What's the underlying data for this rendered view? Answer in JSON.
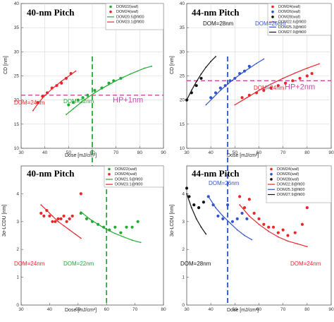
{
  "chart_data": [
    {
      "type": "scatter",
      "title": "40-nm Pitch",
      "xlabel": "Dose [mJ/cm²]",
      "ylabel": "CD [nm]",
      "xlim": [
        30,
        90
      ],
      "ylim": [
        10,
        40
      ],
      "xticks": [
        "30",
        "40",
        "50",
        "60",
        "70",
        "80",
        "90"
      ],
      "yticks": [
        "10",
        "15",
        "20",
        "25",
        "30",
        "35",
        "40"
      ],
      "grid": true,
      "legend_position": "top-right",
      "legend": [
        "DOM22(waf)",
        "DOM24(waf)",
        "DOM20.5@fit00",
        "DOM23.1@fit00"
      ],
      "series": [
        {
          "name": "DOM22(waf)",
          "kind": "points",
          "color": "#22aa33",
          "x": [
            50,
            52,
            54,
            56,
            58,
            61,
            64,
            67,
            69,
            72
          ],
          "y": [
            19,
            19.5,
            20,
            20.5,
            21,
            22,
            22.5,
            23.5,
            24,
            24.5
          ]
        },
        {
          "name": "DOM24(waf)",
          "kind": "points",
          "color": "#e8262b",
          "x": [
            37,
            39,
            41,
            43,
            45,
            47,
            49,
            51
          ],
          "y": [
            19.5,
            20.8,
            21.5,
            22.5,
            23,
            23.5,
            24.5,
            25.5
          ]
        },
        {
          "name": "DOM20.5@fit00",
          "kind": "line",
          "color": "#22aa33",
          "x": [
            49,
            52,
            55,
            58,
            61,
            64,
            67,
            70,
            73,
            76,
            79,
            82,
            85
          ],
          "y": [
            17,
            18.2,
            19.4,
            20.5,
            21.5,
            22.4,
            23.2,
            24,
            24.7,
            25.4,
            26,
            26.6,
            27
          ]
        },
        {
          "name": "DOM23.1@fit00",
          "kind": "line",
          "color": "#e8262b",
          "x": [
            35,
            37,
            39,
            41,
            43,
            45,
            47,
            49,
            51,
            53
          ],
          "y": [
            17.8,
            19.2,
            20.4,
            21.4,
            22.3,
            23.1,
            23.9,
            24.6,
            25.3,
            26
          ]
        }
      ],
      "hline": {
        "y": 21,
        "color": "#cc44aa",
        "label": "HP+1nm"
      },
      "vline": {
        "x": 60,
        "color": "#22aa33"
      },
      "annotations": [
        {
          "text": "DOM=24nm",
          "color": "#e8262b"
        },
        {
          "text": "DOM=22nm",
          "color": "#22aa33"
        }
      ]
    },
    {
      "type": "scatter",
      "title": "44-nm Pitch",
      "xlabel": "Dose [mJ/cm²]",
      "ylabel": "CD [nm]",
      "xlim": [
        30,
        90
      ],
      "ylim": [
        10,
        40
      ],
      "xticks": [
        "30",
        "40",
        "50",
        "60",
        "70",
        "80",
        "90"
      ],
      "yticks": [
        "10",
        "15",
        "20",
        "25",
        "30",
        "35",
        "40"
      ],
      "grid": true,
      "legend_position": "top-right",
      "legend": [
        "DOM24(waf)",
        "DOM26(waf)",
        "DOM28(waf)",
        "DOM22.6@fit00",
        "DOM25.3@fit00",
        "DOM27.9@fit00"
      ],
      "series": [
        {
          "name": "DOM24(waf)",
          "kind": "points",
          "color": "#e8262b",
          "x": [
            53,
            56,
            59,
            62,
            65,
            68,
            71,
            74,
            77,
            80,
            82
          ],
          "y": [
            20.5,
            21,
            21.5,
            22,
            22.5,
            23,
            23.5,
            24,
            24.5,
            25,
            25.5
          ]
        },
        {
          "name": "DOM26(waf)",
          "kind": "points",
          "color": "#3355cc",
          "x": [
            40,
            42,
            44,
            46,
            48,
            50,
            52,
            54,
            56
          ],
          "y": [
            20.5,
            21.5,
            22.5,
            23,
            24,
            24.5,
            25.5,
            26,
            27
          ]
        },
        {
          "name": "DOM28(waf)",
          "kind": "points",
          "color": "#111111",
          "x": [
            30,
            32,
            34,
            36
          ],
          "y": [
            20,
            21.5,
            23,
            24.5
          ]
        },
        {
          "name": "DOM22.6@fit00",
          "kind": "line",
          "color": "#e8262b",
          "x": [
            50,
            55,
            60,
            65,
            70,
            75,
            80,
            85
          ],
          "y": [
            19,
            20.5,
            22,
            23.3,
            24.5,
            25.6,
            26.6,
            27.5
          ]
        },
        {
          "name": "DOM25.3@fit00",
          "kind": "line",
          "color": "#3355cc",
          "x": [
            38,
            41,
            44,
            47,
            50,
            53,
            56,
            59,
            62
          ],
          "y": [
            19,
            20.5,
            22,
            23.3,
            24.5,
            25.6,
            26.6,
            27.6,
            28.5
          ]
        },
        {
          "name": "DOM27.9@fit00",
          "kind": "line",
          "color": "#111111",
          "x": [
            30,
            32,
            34,
            36,
            38,
            40,
            42
          ],
          "y": [
            20,
            22,
            23.8,
            25.4,
            26.8,
            28,
            29
          ]
        }
      ],
      "hline": {
        "y": 24,
        "color": "#cc44aa",
        "label": "HP+2nm"
      },
      "vline": {
        "x": 47,
        "color": "#2255cc"
      },
      "annotations": [
        {
          "text": "DOM=28nm",
          "color": "#111111"
        },
        {
          "text": "DOM=26nm",
          "color": "#3355cc"
        },
        {
          "text": "DOM=24nm",
          "color": "#e8262b"
        }
      ]
    },
    {
      "type": "scatter",
      "title": "40-nm Pitch",
      "xlabel": "Dose [mJ/cm²]",
      "ylabel": "3σ-LCDU [nm]",
      "xlim": [
        30,
        80
      ],
      "ylim": [
        0,
        5
      ],
      "xticks": [
        "30",
        "40",
        "50",
        "60",
        "70",
        "80"
      ],
      "yticks": [
        "0",
        "1",
        "2",
        "3",
        "4"
      ],
      "grid": false,
      "legend_position": "top-right",
      "legend": [
        "DOM22(waf)",
        "DOM24(waf)",
        "DOM21.5@fit00",
        "DOM23.1@fit00"
      ],
      "series": [
        {
          "name": "DOM22(waf)",
          "kind": "points",
          "color": "#22aa33",
          "x": [
            51,
            53,
            55,
            57,
            59,
            61,
            63,
            65,
            67,
            69,
            71
          ],
          "y": [
            3.3,
            3.1,
            3.0,
            2.9,
            2.8,
            2.7,
            2.8,
            2.6,
            2.8,
            2.8,
            3.0
          ]
        },
        {
          "name": "DOM24(waf)",
          "kind": "points",
          "color": "#e8262b",
          "x": [
            37,
            38,
            39,
            40,
            41,
            42,
            43,
            44,
            45,
            46,
            47,
            48,
            51
          ],
          "y": [
            3.3,
            3.2,
            3.4,
            3.2,
            3.0,
            3.0,
            3.1,
            3.1,
            3.2,
            3.0,
            3.1,
            3.2,
            4.0
          ]
        },
        {
          "name": "DOM21.5@fit00",
          "kind": "line",
          "color": "#22aa33",
          "x": [
            51,
            54,
            57,
            60,
            63,
            66,
            69,
            72
          ],
          "y": [
            3.35,
            3.1,
            2.9,
            2.72,
            2.57,
            2.45,
            2.33,
            2.25
          ]
        },
        {
          "name": "DOM23.1@fit00",
          "kind": "line",
          "color": "#e8262b",
          "x": [
            37,
            39,
            41,
            43,
            45,
            47,
            49,
            51
          ],
          "y": [
            3.6,
            3.4,
            3.2,
            3.0,
            2.85,
            2.7,
            2.55,
            2.4
          ]
        }
      ],
      "vline": {
        "x": 60,
        "color": "#22aa33"
      },
      "annotations": [
        {
          "text": "DOM=24nm",
          "color": "#e8262b"
        },
        {
          "text": "DOM=22nm",
          "color": "#22aa33"
        }
      ]
    },
    {
      "type": "scatter",
      "title": "44-nm Pitch",
      "xlabel": "Dose [mJ/cm²]",
      "ylabel": "3σ-LCDU [nm]",
      "xlim": [
        30,
        90
      ],
      "ylim": [
        0,
        5
      ],
      "xticks": [
        "30",
        "40",
        "50",
        "60",
        "70",
        "80",
        "90"
      ],
      "yticks": [
        "0",
        "1",
        "2",
        "3",
        "4"
      ],
      "grid": false,
      "legend_position": "top-right",
      "legend": [
        "DOM24(waf)",
        "DOM26(waf)",
        "DOM28(waf)",
        "DOM22.8@fit00",
        "DOM25.3@fit00",
        "DOM27.9@fit00"
      ],
      "series": [
        {
          "name": "DOM24(waf)",
          "kind": "points",
          "color": "#e8262b",
          "x": [
            52,
            54,
            56,
            58,
            60,
            62,
            64,
            66,
            68,
            70,
            72,
            75,
            78,
            80
          ],
          "y": [
            3.9,
            3.5,
            3.8,
            3.3,
            3.1,
            2.9,
            2.8,
            2.8,
            2.6,
            2.7,
            2.5,
            2.6,
            2.9,
            3.5
          ]
        },
        {
          "name": "DOM26(waf)",
          "kind": "points",
          "color": "#3355cc",
          "x": [
            39,
            41,
            43,
            45,
            47,
            49,
            51,
            53,
            55
          ],
          "y": [
            3.9,
            3.6,
            3.2,
            3.1,
            3.6,
            3.0,
            3.1,
            3.3,
            3.1
          ]
        },
        {
          "name": "DOM28(waf)",
          "kind": "points",
          "color": "#111111",
          "x": [
            30,
            31,
            33,
            35,
            37
          ],
          "y": [
            4.2,
            3.9,
            3.6,
            3.5,
            3.7
          ]
        },
        {
          "name": "DOM22.8@fit00",
          "kind": "line",
          "color": "#e8262b",
          "x": [
            52,
            56,
            60,
            64,
            68,
            72,
            76,
            80
          ],
          "y": [
            3.6,
            3.2,
            2.9,
            2.65,
            2.45,
            2.3,
            2.2,
            2.1
          ]
        },
        {
          "name": "DOM25.3@fit00",
          "kind": "line",
          "color": "#3355cc",
          "x": [
            39,
            42,
            45,
            48,
            51,
            54,
            57
          ],
          "y": [
            3.9,
            3.5,
            3.2,
            2.95,
            2.7,
            2.5,
            2.35
          ]
        },
        {
          "name": "DOM27.9@fit00",
          "kind": "line",
          "color": "#111111",
          "x": [
            30,
            32,
            34,
            36,
            38
          ],
          "y": [
            4.0,
            3.5,
            3.1,
            2.8,
            2.55
          ]
        }
      ],
      "vline": {
        "x": 47,
        "color": "#2255cc"
      },
      "annotations": [
        {
          "text": "DOM=26nm",
          "color": "#3355cc"
        },
        {
          "text": "DOM=28nm",
          "color": "#111111"
        },
        {
          "text": "DOM=24nm",
          "color": "#e8262b"
        }
      ]
    }
  ]
}
